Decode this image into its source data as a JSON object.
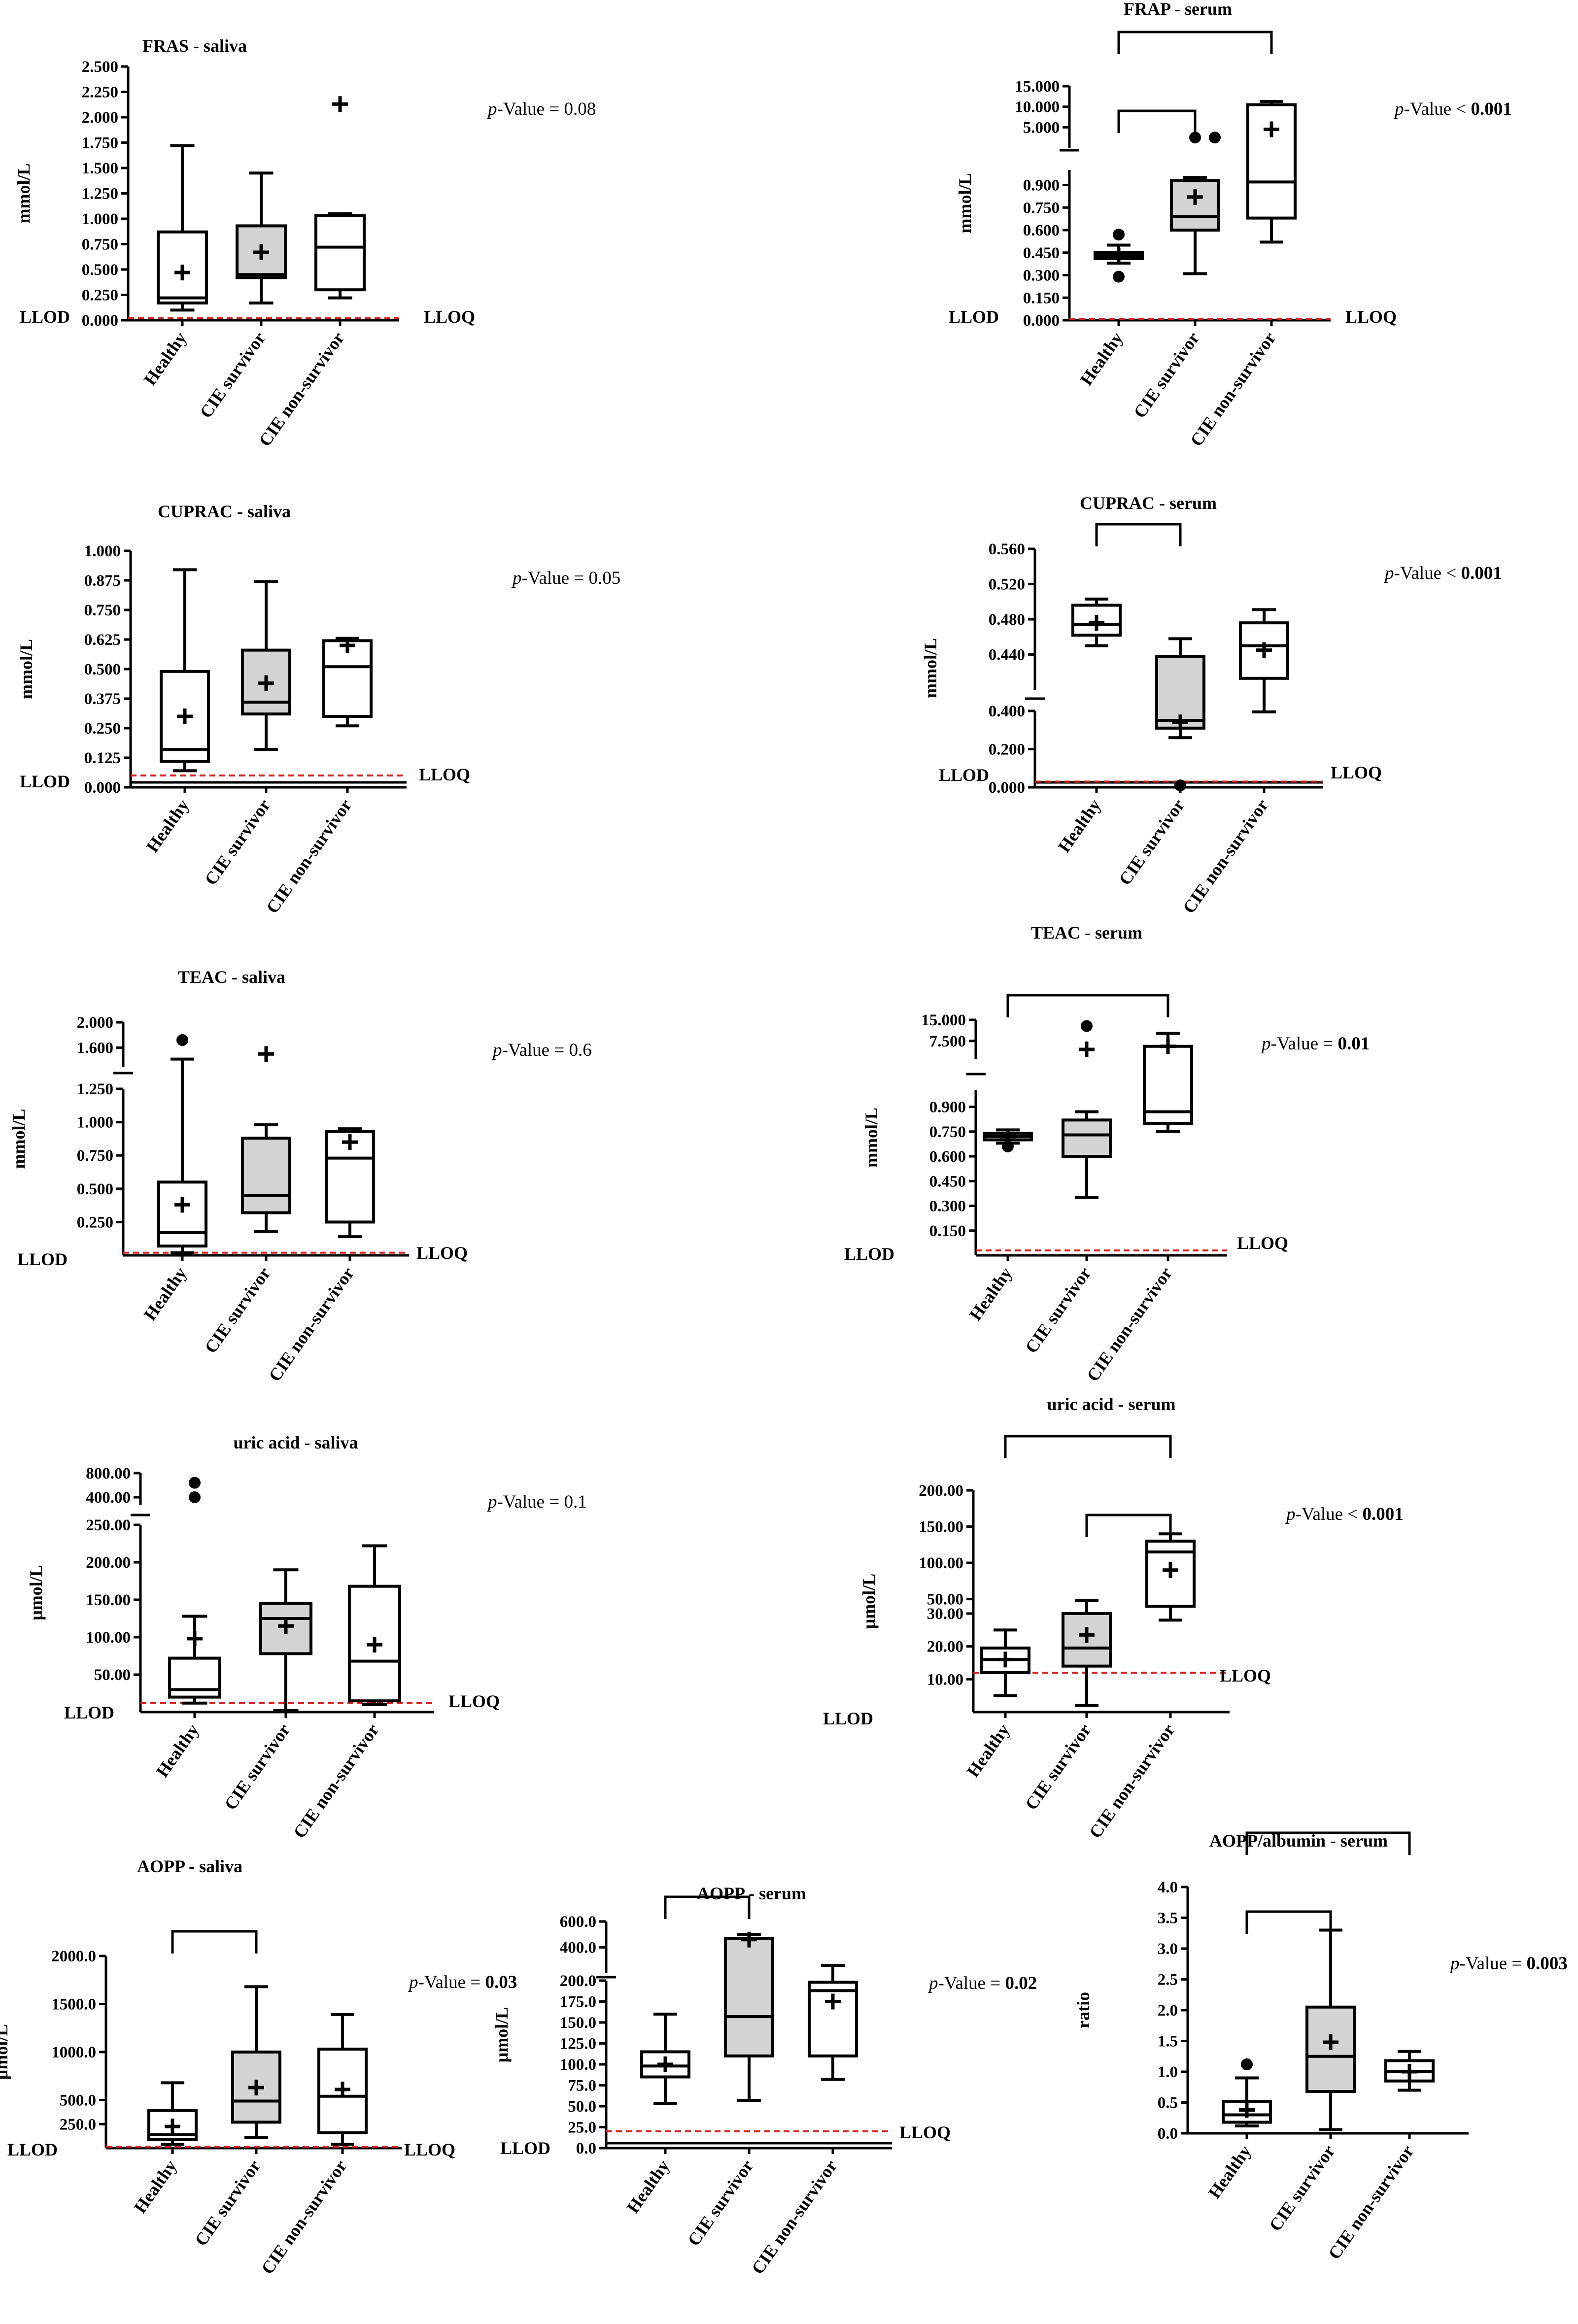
{
  "figure": {
    "lower_limits": {
      "lod": "LLOD",
      "loq": "LLOQ"
    },
    "colors": {
      "box_fill_survivor": "#d3d3d3",
      "box_fill_other": "#ffffff",
      "lloq_line": "#d62020",
      "ink": "#000000"
    }
  },
  "chart_data": [
    {
      "id": "fras-saliva",
      "type": "boxplot",
      "title": "FRAS - saliva",
      "ylabel": "mmol/L",
      "categories": [
        "Healthy",
        "CIE survivor",
        "CIE non-survivor"
      ],
      "p_value": {
        "prefix": "p",
        "label": "-Value",
        "op": "=",
        "value": "0.08",
        "bold": false
      },
      "lloq_value": 0.02,
      "segments": [
        {
          "ylim": [
            0,
            2.5
          ],
          "ticks": [
            "0.000",
            "0.250",
            "0.500",
            "0.750",
            "1.000",
            "1.250",
            "1.500",
            "1.750",
            "2.000",
            "2.250",
            "2.500"
          ]
        }
      ],
      "boxes": [
        {
          "min": 0.1,
          "q1": 0.17,
          "median": 0.22,
          "q3": 0.87,
          "max": 1.72,
          "mean": 0.47
        },
        {
          "min": 0.17,
          "q1": 0.42,
          "median": 0.45,
          "q3": 0.93,
          "max": 1.45,
          "mean": 0.67
        },
        {
          "min": 0.22,
          "q1": 0.3,
          "median": 0.72,
          "q3": 1.03,
          "max": 1.05,
          "mean": 2.13
        }
      ],
      "outliers": [],
      "brackets": []
    },
    {
      "id": "frap-serum",
      "type": "boxplot",
      "title": "FRAP - serum",
      "ylabel": "mmol/L",
      "categories": [
        "Healthy",
        "CIE survivor",
        "CIE non-survivor"
      ],
      "p_value": {
        "prefix": "p",
        "label": "-Value",
        "op": "<",
        "value": "0.001",
        "bold": true
      },
      "lloq_value": 0.01,
      "segments": [
        {
          "ylim": [
            0,
            1.0
          ],
          "ticks": [
            "0.000",
            "0.150",
            "0.300",
            "0.450",
            "0.600",
            "0.750",
            "0.900"
          ]
        },
        {
          "ylim": [
            0,
            15.0
          ],
          "ticks": [
            "5.000",
            "10.000",
            "15.000"
          ]
        }
      ],
      "boxes": [
        {
          "min": 0.38,
          "q1": 0.41,
          "median": 0.43,
          "q3": 0.45,
          "max": 0.5,
          "mean": 0.43
        },
        {
          "min": 0.31,
          "q1": 0.6,
          "median": 0.69,
          "q3": 0.93,
          "max": 0.95,
          "mean": 0.82
        },
        {
          "min": 0.52,
          "q1": 0.68,
          "median": 0.92,
          "q3": 10.5,
          "max": 11.3,
          "mean": 4.5
        }
      ],
      "outliers": [
        {
          "group": 0,
          "value": 0.57
        },
        {
          "group": 0,
          "value": 0.29
        },
        {
          "group": 1,
          "value": 2.5
        },
        {
          "group": 1,
          "value": 2.5
        }
      ],
      "brackets": [
        [
          0,
          2
        ],
        [
          0,
          1
        ]
      ]
    },
    {
      "id": "cuprac-saliva",
      "type": "boxplot",
      "title": "CUPRAC - saliva",
      "ylabel": "mmol/L",
      "categories": [
        "Healthy",
        "CIE survivor",
        "CIE non-survivor"
      ],
      "p_value": {
        "prefix": "p",
        "label": "-Value",
        "op": "=",
        "value": "0.05",
        "bold": false
      },
      "lloq_value": 0.05,
      "segments": [
        {
          "ylim": [
            0,
            1.0
          ],
          "ticks": [
            "0.000",
            "0.125",
            "0.250",
            "0.375",
            "0.500",
            "0.625",
            "0.750",
            "0.875",
            "1.000"
          ]
        }
      ],
      "boxes": [
        {
          "min": 0.07,
          "q1": 0.11,
          "median": 0.16,
          "q3": 0.49,
          "max": 0.92,
          "mean": 0.3
        },
        {
          "min": 0.16,
          "q1": 0.31,
          "median": 0.36,
          "q3": 0.58,
          "max": 0.87,
          "mean": 0.44
        },
        {
          "min": 0.26,
          "q1": 0.3,
          "median": 0.51,
          "q3": 0.62,
          "max": 0.63,
          "mean": 0.6
        }
      ],
      "outliers": [],
      "brackets": []
    },
    {
      "id": "cuprac-serum",
      "type": "boxplot",
      "title": "CUPRAC - serum",
      "ylabel": "mmol/L",
      "categories": [
        "Healthy",
        "CIE survivor",
        "CIE non-survivor"
      ],
      "p_value": {
        "prefix": "p",
        "label": "-Value",
        "op": "<",
        "value": "0.001",
        "bold": true
      },
      "lloq_value": 0.03,
      "segments": [
        {
          "ylim": [
            0,
            0.4
          ],
          "ticks": [
            "0.000",
            "0.200",
            "0.400"
          ]
        },
        {
          "ylim": [
            0.4,
            0.56
          ],
          "ticks": [
            "0.400",
            "0.440",
            "0.480",
            "0.520",
            "0.560"
          ]
        }
      ],
      "boxes": [
        {
          "min": 0.45,
          "q1": 0.462,
          "median": 0.474,
          "q3": 0.496,
          "max": 0.503,
          "mean": 0.476
        },
        {
          "min": 0.26,
          "q1": 0.31,
          "median": 0.35,
          "q3": 0.438,
          "max": 0.458,
          "mean": 0.34
        },
        {
          "min": 0.395,
          "q1": 0.413,
          "median": 0.45,
          "q3": 0.476,
          "max": 0.491,
          "mean": 0.445
        }
      ],
      "outliers": [
        {
          "group": 1,
          "value": 0.01
        }
      ],
      "brackets": [
        [
          0,
          1
        ]
      ]
    },
    {
      "id": "teac-saliva",
      "type": "boxplot",
      "title": "TEAC - saliva",
      "ylabel": "mmol/L",
      "categories": [
        "Healthy",
        "CIE survivor",
        "CIE non-survivor"
      ],
      "p_value": {
        "prefix": "p",
        "label": "-Value",
        "op": "=",
        "value": "0.6",
        "bold": false
      },
      "lloq_value": 0.02,
      "segments": [
        {
          "ylim": [
            0,
            1.25
          ],
          "ticks": [
            "0.250",
            "0.500",
            "0.750",
            "1.000",
            "1.250"
          ]
        },
        {
          "ylim": [
            1.3,
            2.0
          ],
          "ticks": [
            "1.600",
            "2.000"
          ]
        }
      ],
      "boxes": [
        {
          "min": 0.02,
          "q1": 0.07,
          "median": 0.17,
          "q3": 0.55,
          "max": 1.42,
          "mean": 0.38
        },
        {
          "min": 0.18,
          "q1": 0.32,
          "median": 0.45,
          "q3": 0.88,
          "max": 0.98,
          "mean": 1.5
        },
        {
          "min": 0.14,
          "q1": 0.25,
          "median": 0.73,
          "q3": 0.93,
          "max": 0.95,
          "mean": 0.85
        }
      ],
      "outliers": [
        {
          "group": 0,
          "value": 1.72
        }
      ],
      "brackets": []
    },
    {
      "id": "teac-serum",
      "type": "boxplot",
      "title": "TEAC - serum",
      "ylabel": "mmol/L",
      "categories": [
        "Healthy",
        "CIE survivor",
        "CIE non-survivor"
      ],
      "p_value": {
        "prefix": "p",
        "label": "-Value",
        "op": "=",
        "value": "0.01",
        "bold": true
      },
      "lloq_value": 0.03,
      "segments": [
        {
          "ylim": [
            0,
            1.0
          ],
          "ticks": [
            "0.150",
            "0.300",
            "0.450",
            "0.600",
            "0.750",
            "0.900"
          ]
        },
        {
          "ylim": [
            1.0,
            15.0
          ],
          "ticks": [
            "7.500",
            "15.000"
          ]
        }
      ],
      "boxes": [
        {
          "min": 0.68,
          "q1": 0.7,
          "median": 0.72,
          "q3": 0.74,
          "max": 0.76,
          "mean": 0.72
        },
        {
          "min": 0.35,
          "q1": 0.6,
          "median": 0.73,
          "q3": 0.82,
          "max": 0.87,
          "mean": 4.5
        },
        {
          "min": 0.75,
          "q1": 0.8,
          "median": 0.87,
          "q3": 5.6,
          "max": 10.2,
          "mean": 5.6
        }
      ],
      "outliers": [
        {
          "group": 0,
          "value": 0.66
        },
        {
          "group": 1,
          "value": 12.8
        }
      ],
      "brackets": [
        [
          0,
          2
        ]
      ]
    },
    {
      "id": "uric-acid-saliva",
      "type": "boxplot",
      "title": "uric acid - saliva",
      "ylabel": "μmol/L",
      "categories": [
        "Healthy",
        "CIE survivor",
        "CIE non-survivor"
      ],
      "p_value": {
        "prefix": "p",
        "label": "-Value",
        "op": "=",
        "value": "0.1",
        "bold": false
      },
      "lloq_value": 12,
      "segments": [
        {
          "ylim": [
            0,
            250
          ],
          "ticks": [
            "50.00",
            "100.00",
            "150.00",
            "200.00",
            "250.00"
          ]
        },
        {
          "ylim": [
            270,
            800
          ],
          "ticks": [
            "400.00",
            "800.00"
          ]
        }
      ],
      "boxes": [
        {
          "min": 12,
          "q1": 20,
          "median": 30,
          "q3": 72,
          "max": 128,
          "mean": 98
        },
        {
          "min": 2,
          "q1": 78,
          "median": 125,
          "q3": 145,
          "max": 190,
          "mean": 115
        },
        {
          "min": 10,
          "q1": 15,
          "median": 68,
          "q3": 168,
          "max": 222,
          "mean": 90
        }
      ],
      "outliers": [
        {
          "group": 0,
          "value": 640
        },
        {
          "group": 0,
          "value": 400
        }
      ],
      "brackets": []
    },
    {
      "id": "uric-acid-serum",
      "type": "boxplot",
      "title": "uric acid - serum",
      "ylabel": "μmol/L",
      "categories": [
        "Healthy",
        "CIE survivor",
        "CIE non-survivor"
      ],
      "p_value": {
        "prefix": "p",
        "label": "-Value",
        "op": "<",
        "value": "0.001",
        "bold": true
      },
      "lloq_value": 12,
      "segments": [
        {
          "ylim": [
            0,
            30
          ],
          "ticks": [
            "10.00",
            "20.00",
            "30.00"
          ]
        },
        {
          "ylim": [
            30,
            200
          ],
          "ticks": [
            "50.00",
            "100.00",
            "150.00",
            "200.00"
          ]
        }
      ],
      "boxes": [
        {
          "min": 5,
          "q1": 12,
          "median": 16,
          "q3": 19.5,
          "max": 25,
          "mean": 16
        },
        {
          "min": 2,
          "q1": 14,
          "median": 19.5,
          "q3": 30,
          "max": 48,
          "mean": 23.5
        },
        {
          "min": 28,
          "q1": 40,
          "median": 115,
          "q3": 130,
          "max": 140,
          "mean": 90
        }
      ],
      "outliers": [],
      "brackets": [
        [
          0,
          2
        ],
        [
          1,
          2
        ]
      ]
    },
    {
      "id": "aopp-saliva",
      "type": "boxplot",
      "title": "AOPP - saliva",
      "ylabel": "μmol/L",
      "categories": [
        "Healthy",
        "CIE survivor",
        "CIE non-survivor"
      ],
      "p_value": {
        "prefix": "p",
        "label": "-Value",
        "op": "=",
        "value": "0.03",
        "bold": true
      },
      "lloq_value": 15,
      "segments": [
        {
          "ylim": [
            0,
            2000
          ],
          "ticks": [
            "250.0",
            "500.0",
            "1000.0",
            "1500.0",
            "2000.0"
          ]
        }
      ],
      "boxes": [
        {
          "min": 40,
          "q1": 90,
          "median": 140,
          "q3": 390,
          "max": 680,
          "mean": 225
        },
        {
          "min": 110,
          "q1": 270,
          "median": 490,
          "q3": 1000,
          "max": 1680,
          "mean": 630
        },
        {
          "min": 40,
          "q1": 160,
          "median": 540,
          "q3": 1030,
          "max": 1390,
          "mean": 610
        }
      ],
      "outliers": [],
      "brackets": [
        [
          0,
          1
        ]
      ]
    },
    {
      "id": "aopp-serum",
      "type": "boxplot",
      "title": "AOPP - serum",
      "ylabel": "μmol/L",
      "categories": [
        "Healthy",
        "CIE survivor",
        "CIE non-survivor"
      ],
      "p_value": {
        "prefix": "p",
        "label": "-Value",
        "op": "=",
        "value": "0.02",
        "bold": true
      },
      "lloq_value": 20,
      "segments": [
        {
          "ylim": [
            0,
            200
          ],
          "ticks": [
            "0.0",
            "25.0",
            "50.0",
            "75.0",
            "100.0",
            "125.0",
            "150.0",
            "175.0",
            "200.0"
          ]
        },
        {
          "ylim": [
            200,
            600
          ],
          "ticks": [
            "200.0",
            "400.0",
            "600.0"
          ]
        }
      ],
      "boxes": [
        {
          "min": 53,
          "q1": 85,
          "median": 98,
          "q3": 115,
          "max": 160,
          "mean": 100
        },
        {
          "min": 57,
          "q1": 110,
          "median": 157,
          "q3": 470,
          "max": 500,
          "mean": 460
        },
        {
          "min": 82,
          "q1": 110,
          "median": 188,
          "q3": 198,
          "max": 260,
          "mean": 175
        }
      ],
      "outliers": [],
      "brackets": [
        [
          0,
          1
        ]
      ]
    },
    {
      "id": "aopp-albumin-serum",
      "type": "boxplot",
      "title": "AOPP/albumin - serum",
      "ylabel": "ratio",
      "categories": [
        "Healthy",
        "CIE survivor",
        "CIE non-survivor"
      ],
      "p_value": {
        "prefix": "p",
        "label": "-Value",
        "op": "=",
        "value": "0.003",
        "bold": true
      },
      "lloq_value": null,
      "segments": [
        {
          "ylim": [
            0,
            4.0
          ],
          "ticks": [
            "0.0",
            "0.5",
            "1.0",
            "1.5",
            "2.0",
            "2.5",
            "3.0",
            "3.5",
            "4.0"
          ]
        }
      ],
      "boxes": [
        {
          "min": 0.12,
          "q1": 0.18,
          "median": 0.3,
          "q3": 0.52,
          "max": 0.9,
          "mean": 0.38
        },
        {
          "min": 0.06,
          "q1": 0.68,
          "median": 1.25,
          "q3": 2.05,
          "max": 3.3,
          "mean": 1.48
        },
        {
          "min": 0.7,
          "q1": 0.85,
          "median": 1.0,
          "q3": 1.18,
          "max": 1.33,
          "mean": 1.0
        }
      ],
      "outliers": [
        {
          "group": 0,
          "value": 1.12
        }
      ],
      "brackets": [
        [
          0,
          2
        ],
        [
          0,
          1
        ]
      ]
    }
  ]
}
